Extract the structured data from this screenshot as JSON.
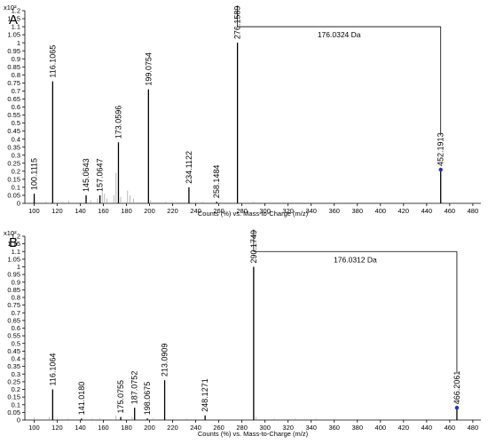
{
  "chart_data": [
    {
      "type": "bar",
      "panel": "A",
      "y_unit_label": "x10²",
      "xlabel": "Counts (%) vs. Mass-to-Charge (m/z)",
      "xlim": [
        92,
        487
      ],
      "ylim": [
        0,
        1.2
      ],
      "x_ticks": [
        100,
        120,
        140,
        160,
        180,
        200,
        220,
        240,
        260,
        280,
        300,
        320,
        340,
        360,
        380,
        400,
        420,
        440,
        460,
        480
      ],
      "y_ticks": [
        "0",
        "0.05",
        "0.1",
        "0.15",
        "0.2",
        "0.25",
        "0.3",
        "0.35",
        "0.4",
        "0.45",
        "0.5",
        "0.55",
        "0.6",
        "0.65",
        "0.7",
        "0.75",
        "0.8",
        "0.85",
        "0.9",
        "0.95",
        "1",
        "1.05",
        "1.1",
        "1.15",
        "1.2"
      ],
      "peaks": [
        {
          "mz": 100.1115,
          "intensity": 0.06,
          "label": "100.1115"
        },
        {
          "mz": 116.1065,
          "intensity": 0.76,
          "label": "116.1065"
        },
        {
          "mz": 145.0643,
          "intensity": 0.05,
          "label": "145.0643"
        },
        {
          "mz": 157.0647,
          "intensity": 0.05,
          "label": "157.0647"
        },
        {
          "mz": 173.0596,
          "intensity": 0.38,
          "label": "173.0596"
        },
        {
          "mz": 199.0754,
          "intensity": 0.71,
          "label": "199.0754"
        },
        {
          "mz": 234.1122,
          "intensity": 0.1,
          "label": "234.1122"
        },
        {
          "mz": 258.1484,
          "intensity": 0.01,
          "label": "258.1484"
        },
        {
          "mz": 276.1589,
          "intensity": 1.0,
          "label": "276.1589"
        },
        {
          "mz": 452.1913,
          "intensity": 0.21,
          "label": "452.1913",
          "precursor": true
        }
      ],
      "minor_peaks": [
        {
          "mz": 110,
          "intensity": 0.01
        },
        {
          "mz": 125,
          "intensity": 0.01
        },
        {
          "mz": 130,
          "intensity": 0.015
        },
        {
          "mz": 149,
          "intensity": 0.02
        },
        {
          "mz": 155,
          "intensity": 0.03
        },
        {
          "mz": 159,
          "intensity": 0.07
        },
        {
          "mz": 161,
          "intensity": 0.06
        },
        {
          "mz": 163,
          "intensity": 0.03
        },
        {
          "mz": 169,
          "intensity": 0.05
        },
        {
          "mz": 171,
          "intensity": 0.19
        },
        {
          "mz": 175,
          "intensity": 0.04
        },
        {
          "mz": 181,
          "intensity": 0.08
        },
        {
          "mz": 183,
          "intensity": 0.05
        },
        {
          "mz": 186,
          "intensity": 0.03
        },
        {
          "mz": 201,
          "intensity": 0.02
        },
        {
          "mz": 214,
          "intensity": 0.01
        },
        {
          "mz": 246,
          "intensity": 0.01
        },
        {
          "mz": 290,
          "intensity": 0.01
        }
      ],
      "neutral_loss": {
        "from_mz": 276.1589,
        "to_mz": 452.1913,
        "level": 1.1,
        "label": "176.0324 Da"
      }
    },
    {
      "type": "bar",
      "panel": "B",
      "y_unit_label": "x10²",
      "xlabel": "Counts (%) vs. Mass-to-Charge (m/z)",
      "xlim": [
        92,
        487
      ],
      "ylim": [
        0,
        1.2
      ],
      "x_ticks": [
        100,
        120,
        140,
        160,
        180,
        200,
        220,
        240,
        260,
        280,
        300,
        320,
        340,
        360,
        380,
        400,
        420,
        440,
        460,
        480
      ],
      "y_ticks": [
        "0",
        "0.05",
        "0.1",
        "0.15",
        "0.2",
        "0.25",
        "0.3",
        "0.35",
        "0.4",
        "0.45",
        "0.5",
        "0.55",
        "0.6",
        "0.65",
        "0.7",
        "0.75",
        "0.8",
        "0.85",
        "0.9",
        "0.95",
        "1",
        "1.05",
        "1.1",
        "1.15",
        "1.2"
      ],
      "peaks": [
        {
          "mz": 116.1064,
          "intensity": 0.2,
          "label": "116.1064"
        },
        {
          "mz": 141.018,
          "intensity": 0.01,
          "label": "141.0180"
        },
        {
          "mz": 175.0755,
          "intensity": 0.02,
          "label": "175.0755"
        },
        {
          "mz": 187.0752,
          "intensity": 0.08,
          "label": "187.0752"
        },
        {
          "mz": 198.0675,
          "intensity": 0.01,
          "label": "198.0675"
        },
        {
          "mz": 213.0909,
          "intensity": 0.26,
          "label": "213.0909"
        },
        {
          "mz": 248.1271,
          "intensity": 0.03,
          "label": "248.1271"
        },
        {
          "mz": 290.1749,
          "intensity": 1.0,
          "label": "290.1749"
        },
        {
          "mz": 466.2061,
          "intensity": 0.08,
          "label": "466.2061",
          "precursor": true
        }
      ],
      "minor_peaks": [
        {
          "mz": 100,
          "intensity": 0.015
        },
        {
          "mz": 113,
          "intensity": 0.02
        },
        {
          "mz": 120,
          "intensity": 0.01
        },
        {
          "mz": 129,
          "intensity": 0.01
        },
        {
          "mz": 150,
          "intensity": 0.01
        },
        {
          "mz": 157,
          "intensity": 0.01
        },
        {
          "mz": 171,
          "intensity": 0.03
        },
        {
          "mz": 185,
          "intensity": 0.02
        },
        {
          "mz": 203,
          "intensity": 0.01
        },
        {
          "mz": 232,
          "intensity": 0.01
        },
        {
          "mz": 292,
          "intensity": 0.02
        },
        {
          "mz": 308,
          "intensity": 0.01
        },
        {
          "mz": 326,
          "intensity": 0.01
        },
        {
          "mz": 344,
          "intensity": 0.01
        }
      ],
      "neutral_loss": {
        "from_mz": 290.1749,
        "to_mz": 466.2061,
        "level": 1.1,
        "label": "176.0312 Da"
      }
    }
  ],
  "colors": {
    "axis": "#000000",
    "peak": "#000000",
    "minor_peak": "#9a9a9a",
    "precursor_marker": "#1f2fbf"
  }
}
